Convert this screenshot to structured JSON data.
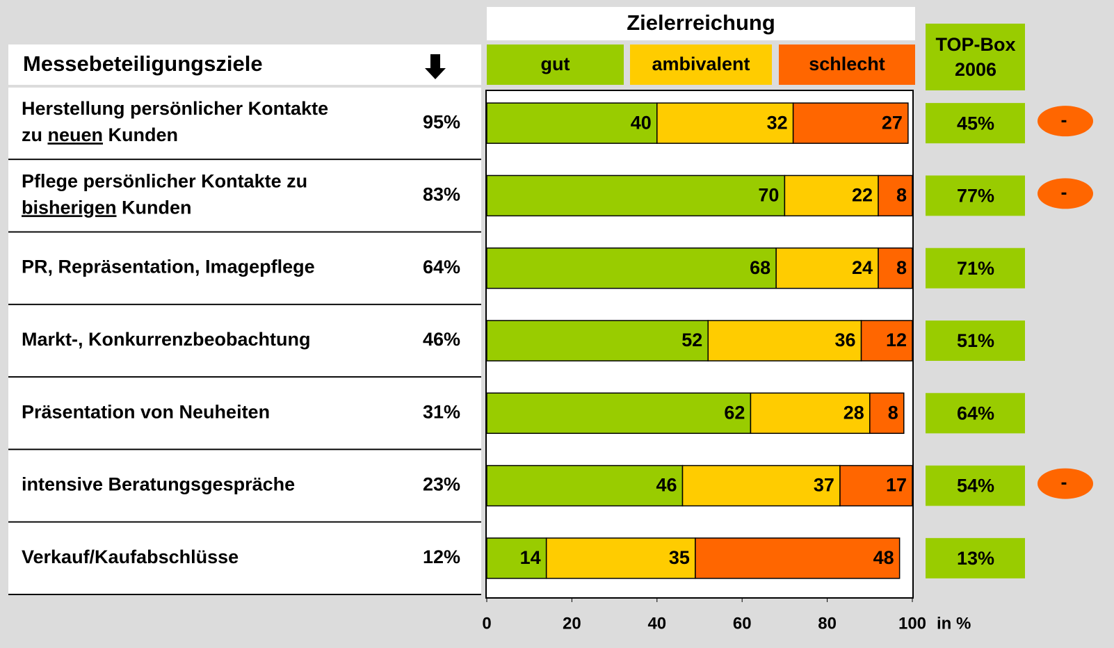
{
  "header": {
    "title": "Messebeteiligungsziele",
    "top_box_title": "TOP-Box 2006"
  },
  "rows": [
    {
      "lines": [
        [
          {
            "text": "Herstellung persönlicher Kontakte"
          }
        ],
        [
          {
            "text": "zu "
          },
          {
            "text": "neuen",
            "underline": true
          },
          {
            "text": " Kunden"
          }
        ]
      ],
      "share": "95%",
      "top_box": "45%",
      "flag": "-"
    },
    {
      "lines": [
        [
          {
            "text": "Pflege persönlicher Kontakte zu"
          }
        ],
        [
          {
            "text": "bisherigen",
            "underline": true
          },
          {
            "text": " Kunden"
          }
        ]
      ],
      "share": "83%",
      "top_box": "77%",
      "flag": "-"
    },
    {
      "lines": [
        [
          {
            "text": "PR, Repräsentation, Imagepflege"
          }
        ]
      ],
      "share": "64%",
      "top_box": "71%"
    },
    {
      "lines": [
        [
          {
            "text": "Markt-, Konkurrenzbeobachtung"
          }
        ]
      ],
      "share": "46%",
      "top_box": "51%"
    },
    {
      "lines": [
        [
          {
            "text": "Präsentation von Neuheiten"
          }
        ]
      ],
      "share": "31%",
      "top_box": "64%"
    },
    {
      "lines": [
        [
          {
            "text": "intensive Beratungsgespräche"
          }
        ]
      ],
      "share": "23%",
      "top_box": "54%",
      "flag": "-"
    },
    {
      "lines": [
        [
          {
            "text": "Verkauf/Kaufabschlüsse"
          }
        ]
      ],
      "share": "12%",
      "top_box": "13%"
    }
  ],
  "chart_data": {
    "type": "stacked_barh",
    "title": "Zielerreichung",
    "x_label": "in %",
    "xlim": [
      0,
      100
    ],
    "xticks": [
      0,
      20,
      40,
      60,
      80,
      100
    ],
    "series": [
      {
        "name": "gut",
        "color": "#99cc00",
        "values": [
          40,
          70,
          68,
          52,
          62,
          46,
          14
        ]
      },
      {
        "name": "ambivalent",
        "color": "#ffcc00",
        "values": [
          32,
          22,
          24,
          36,
          28,
          37,
          35
        ]
      },
      {
        "name": "schlecht",
        "color": "#ff6600",
        "values": [
          27,
          8,
          8,
          12,
          8,
          17,
          48
        ]
      }
    ]
  }
}
